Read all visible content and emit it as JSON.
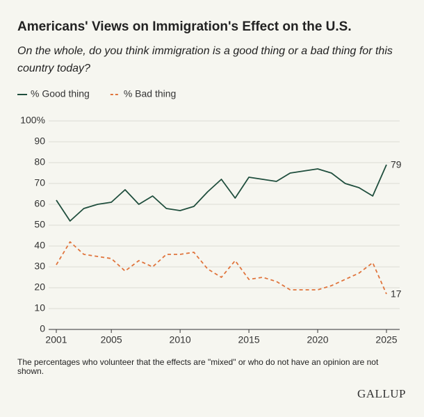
{
  "chart_data": {
    "type": "line",
    "title": "Americans' Views on Immigration's Effect on the U.S.",
    "subtitle": "On the whole, do you think immigration is a good thing or a bad thing for this country today?",
    "x": [
      2001,
      2002,
      2003,
      2004,
      2005,
      2006,
      2007,
      2008,
      2009,
      2010,
      2011,
      2012,
      2013,
      2014,
      2015,
      2016,
      2017,
      2018,
      2019,
      2020,
      2021,
      2022,
      2023,
      2024,
      2025
    ],
    "series": [
      {
        "name": "% Good thing",
        "color": "#1f4e3d",
        "line_style": "solid",
        "values": [
          62,
          52,
          58,
          60,
          61,
          67,
          60,
          64,
          58,
          57,
          59,
          66,
          72,
          63,
          73,
          72,
          71,
          75,
          76,
          77,
          75,
          70,
          68,
          64,
          79
        ]
      },
      {
        "name": "% Bad thing",
        "color": "#e0743c",
        "line_style": "dashed",
        "values": [
          31,
          42,
          36,
          35,
          34,
          28,
          33,
          30,
          36,
          36,
          37,
          29,
          25,
          33,
          24,
          25,
          23,
          19,
          19,
          19,
          21,
          24,
          27,
          32,
          17
        ]
      }
    ],
    "xlim": [
      2001,
      2025
    ],
    "xticks": [
      2001,
      2005,
      2010,
      2015,
      2020,
      2025
    ],
    "ylim": [
      0,
      100
    ],
    "yticks": [
      0,
      10,
      20,
      30,
      40,
      50,
      60,
      70,
      80,
      90,
      {
        "value": 100,
        "label": "100%"
      }
    ],
    "grid": true,
    "note": "The percentages who volunteer that the effects are \"mixed\" or who do not have an opinion are not shown.",
    "source": "GALLUP"
  }
}
